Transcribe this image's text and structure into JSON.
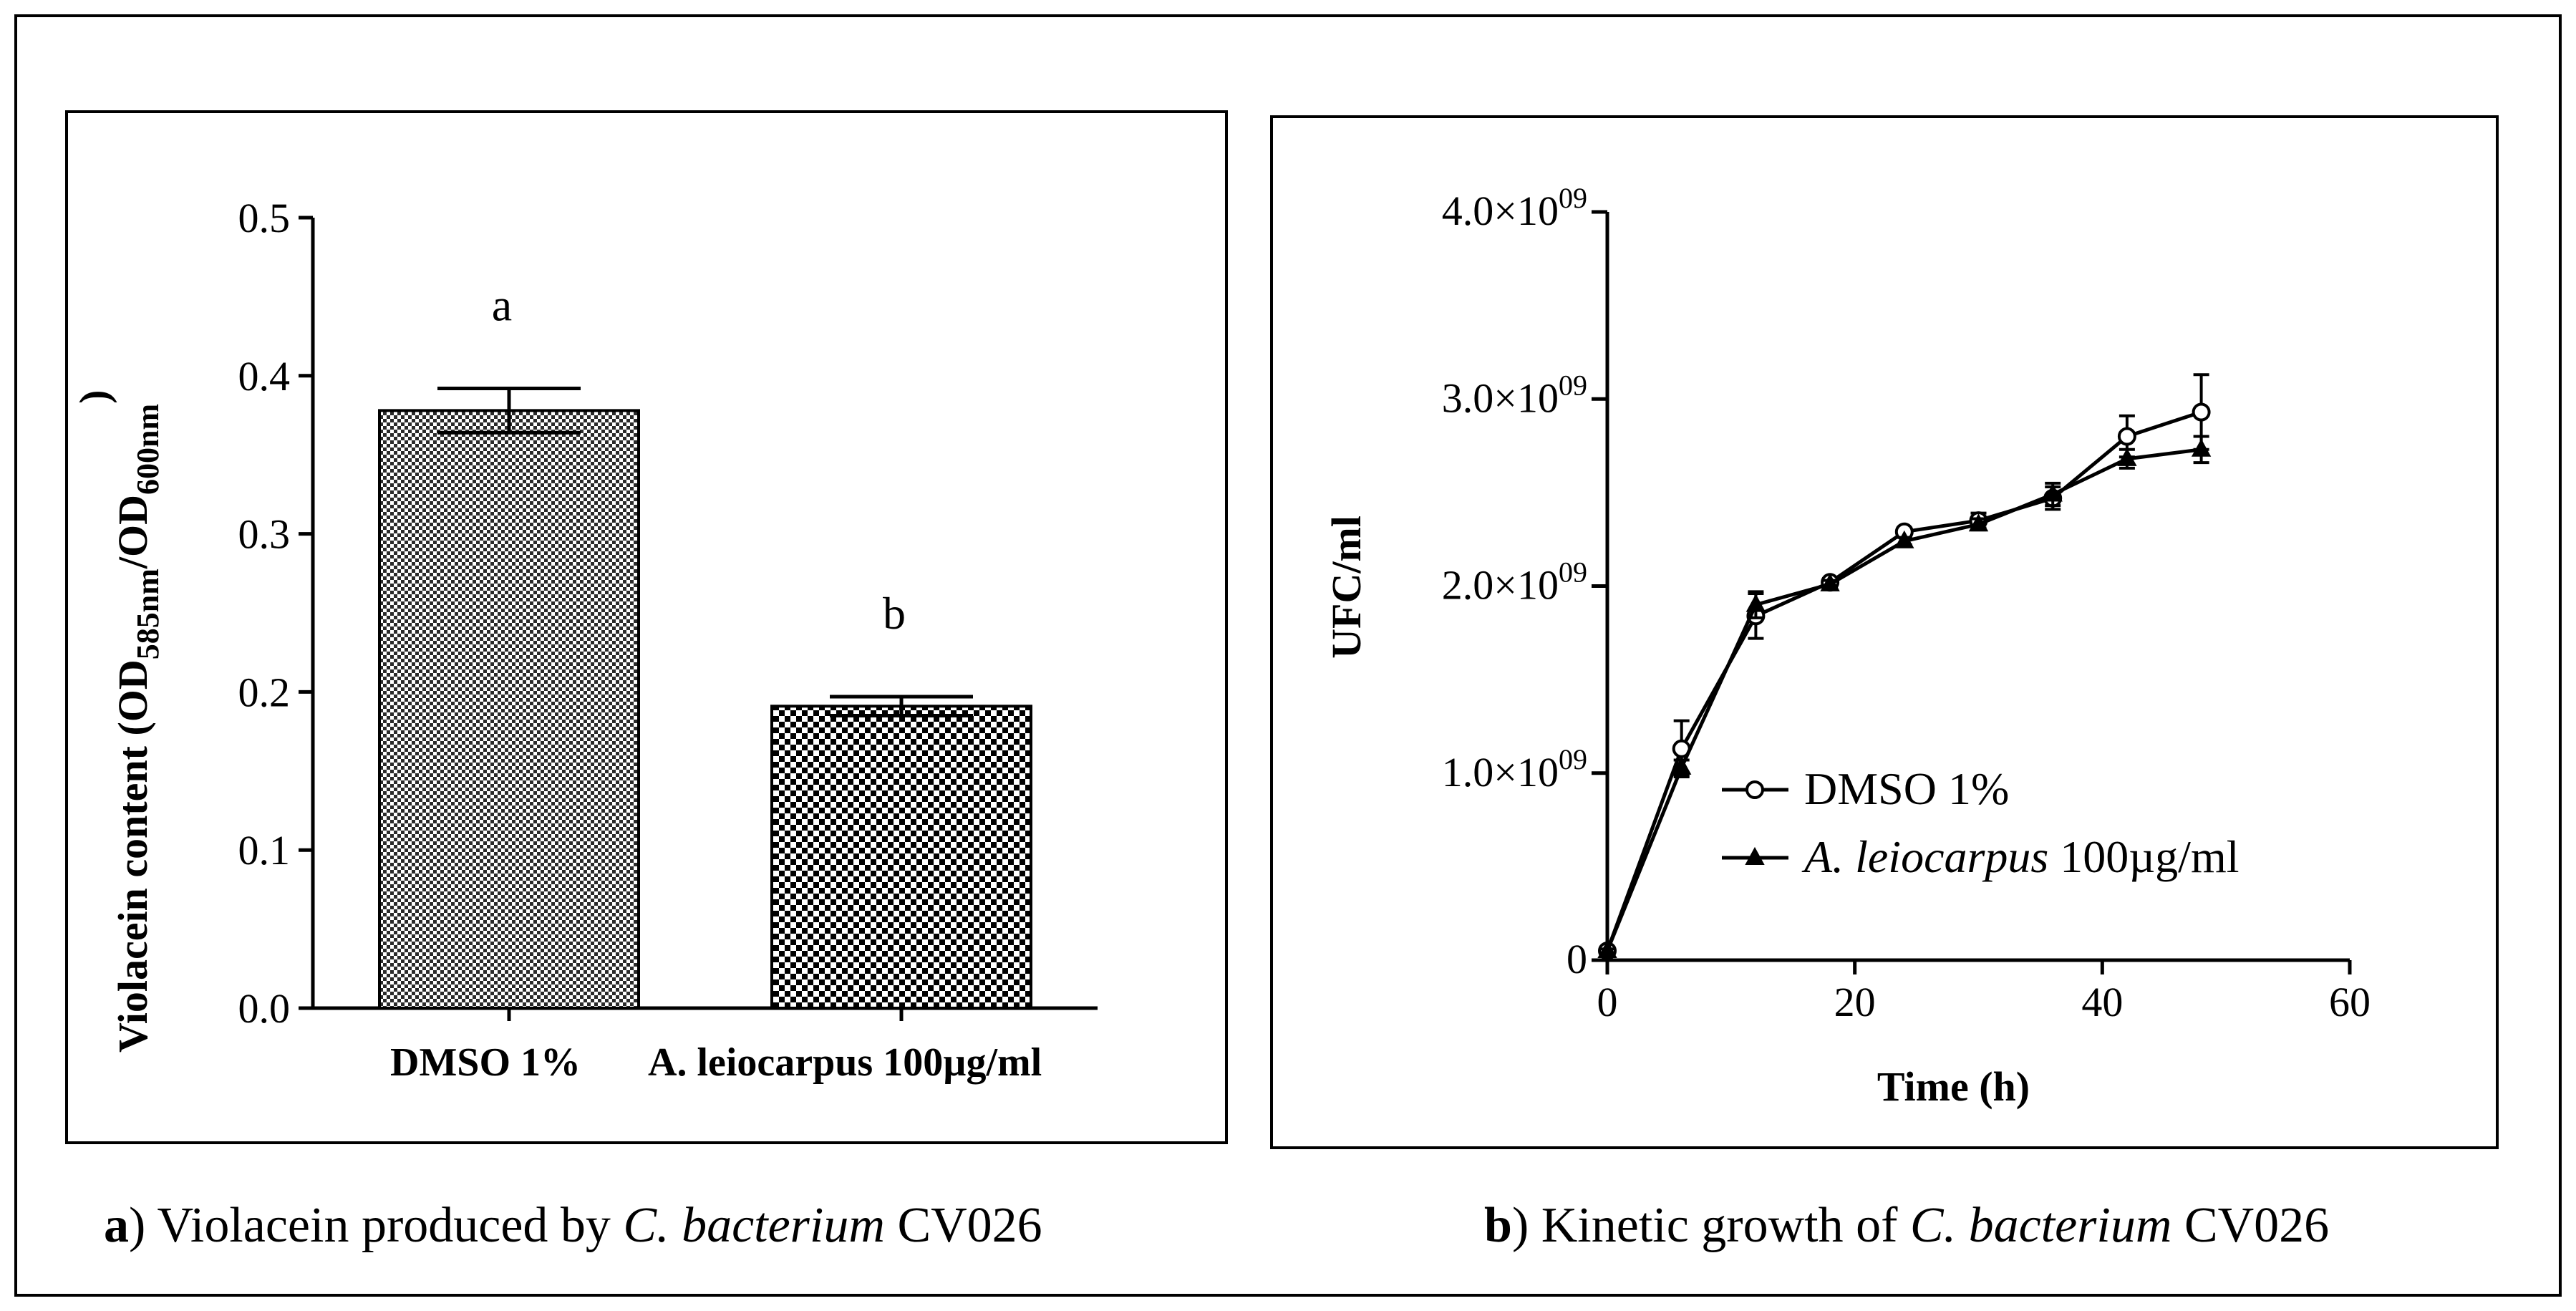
{
  "figure": {
    "captions": [
      {
        "label": "a",
        "text_before": ") Violacein produced by ",
        "italic": "C. bacterium",
        "text_after": " CV026"
      },
      {
        "label": "b",
        "text_before": ") Kinetic growth of ",
        "italic": "C. bacterium",
        "text_after": " CV026"
      }
    ]
  },
  "chart_data": [
    {
      "id": "panel-a",
      "type": "bar",
      "categories": [
        "DMSO 1%",
        "A. leiocarpus 100µg/ml"
      ],
      "values": [
        0.378,
        0.191
      ],
      "errors": [
        0.014,
        0.006
      ],
      "significance_letters": [
        "a",
        "b"
      ],
      "patterns": [
        "fine-checker",
        "coarse-checker"
      ],
      "ylabel": {
        "main": "Violacein content (OD",
        "sub1": "585nm",
        "mid": "/OD",
        "sub2": "600nm",
        "end": ")"
      },
      "xlabel": "",
      "ylim": [
        0,
        0.5
      ],
      "yticks": [
        0.0,
        0.1,
        0.2,
        0.3,
        0.4,
        0.5
      ],
      "ytick_labels": [
        "0.0",
        "0.1",
        "0.2",
        "0.3",
        "0.4",
        "0.5"
      ]
    },
    {
      "id": "panel-b",
      "type": "line",
      "xlabel": "Time (h)",
      "ylabel": "UFC/ml",
      "xlim": [
        0,
        60
      ],
      "ylim": [
        0,
        4000000000
      ],
      "xticks": [
        0,
        20,
        40,
        60
      ],
      "xtick_labels": [
        "0",
        "20",
        "40",
        "60"
      ],
      "yticks": [
        0,
        1000000000,
        2000000000,
        3000000000,
        4000000000
      ],
      "ytick_labels": [
        {
          "mantissa": "0",
          "exp": ""
        },
        {
          "mantissa": "1.0×10",
          "exp": "09"
        },
        {
          "mantissa": "2.0×10",
          "exp": "09"
        },
        {
          "mantissa": "3.0×10",
          "exp": "09"
        },
        {
          "mantissa": "4.0×10",
          "exp": "09"
        }
      ],
      "legend": {
        "position": "center",
        "entries": [
          {
            "text": "DMSO 1%",
            "marker": "open-circle"
          },
          {
            "italic": "A. leiocarpus",
            "text": " 100µg/ml",
            "marker": "filled-triangle"
          }
        ]
      },
      "series": [
        {
          "name": "DMSO 1%",
          "marker": "open-circle",
          "x": [
            0,
            6,
            12,
            18,
            24,
            30,
            36,
            42,
            48
          ],
          "y": [
            50000000,
            1130000000,
            1840000000,
            2020000000,
            2290000000,
            2350000000,
            2470000000,
            2800000000,
            2930000000
          ],
          "err": [
            10000000,
            150000000,
            120000000,
            20000000,
            20000000,
            40000000,
            60000000,
            110000000,
            200000000
          ]
        },
        {
          "name": "A. leiocarpus 100µg/ml",
          "marker": "filled-triangle",
          "x": [
            0,
            6,
            12,
            18,
            24,
            30,
            36,
            42,
            48
          ],
          "y": [
            50000000,
            1030000000,
            1900000000,
            2010000000,
            2240000000,
            2330000000,
            2490000000,
            2680000000,
            2730000000
          ],
          "err": [
            10000000,
            40000000,
            70000000,
            20000000,
            20000000,
            30000000,
            60000000,
            50000000,
            70000000
          ]
        }
      ]
    }
  ]
}
